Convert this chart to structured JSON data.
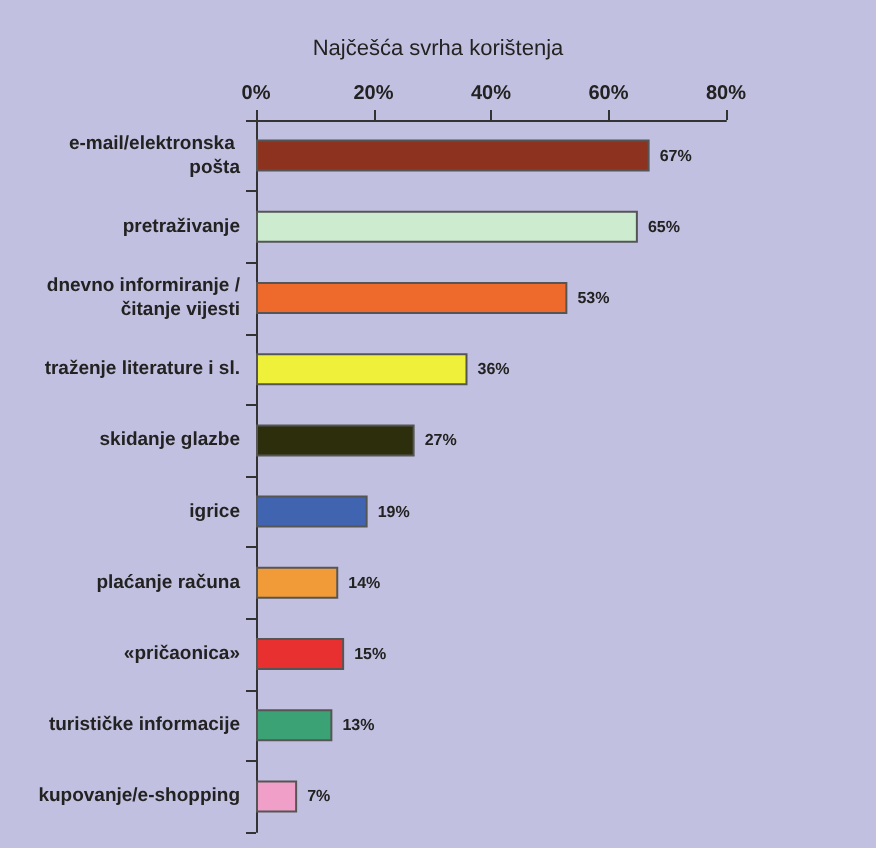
{
  "chart_data": {
    "type": "bar",
    "orientation": "horizontal",
    "title": "Najčešća svrha korištenja",
    "categories": [
      "e-mail/elektronska pošta",
      "pretraživanje",
      "dnevno informiranje /čitanje vijesti",
      "traženje literature i sl.",
      "skidanje glazbe",
      "igrice",
      "plaćanje računa",
      "«pričaonica»",
      "turističke informacije",
      "kupovanje/e-shopping"
    ],
    "values": [
      67,
      65,
      53,
      36,
      27,
      19,
      14,
      15,
      13,
      7
    ],
    "colors": [
      "#8e3220",
      "#cdebcf",
      "#ee6a2c",
      "#eef03a",
      "#2c2e0c",
      "#4064b0",
      "#f09a38",
      "#e83030",
      "#3aa274",
      "#f0a0c8"
    ],
    "value_labels": [
      "67%",
      "65%",
      "53%",
      "36%",
      "27%",
      "19%",
      "14%",
      "15%",
      "13%",
      "7%"
    ],
    "xlim": [
      0,
      80
    ],
    "xticks": [
      {
        "value": 0,
        "label": "0%"
      },
      {
        "value": 20,
        "label": "20%"
      },
      {
        "value": 40,
        "label": "40%"
      },
      {
        "value": 60,
        "label": "60%"
      },
      {
        "value": 80,
        "label": "80%"
      }
    ],
    "grid": false
  }
}
